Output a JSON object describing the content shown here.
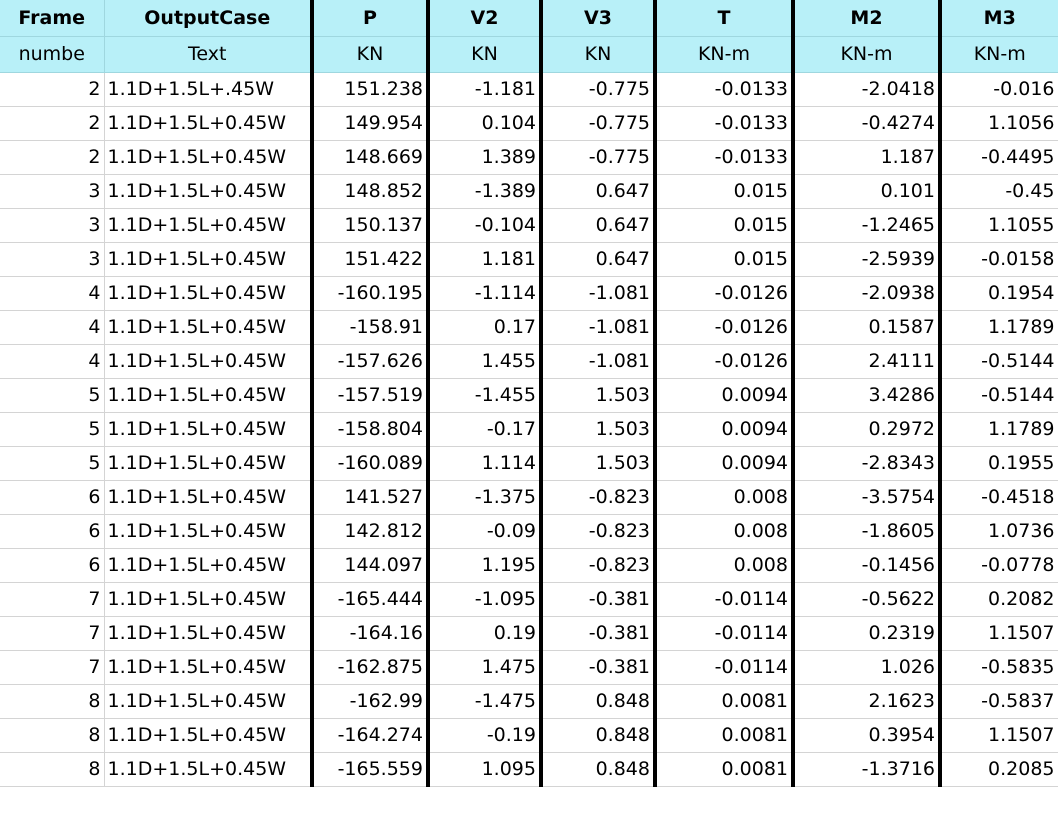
{
  "headers": [
    "Frame",
    "OutputCase",
    "P",
    "V2",
    "V3",
    "T",
    "M2",
    "M3"
  ],
  "units": [
    "numbe",
    "Text",
    "KN",
    "KN",
    "KN",
    "KN-m",
    "KN-m",
    "KN-m"
  ],
  "rows": [
    [
      "2",
      "1.1D+1.5L+.45W",
      "151.238",
      "-1.181",
      "-0.775",
      "-0.0133",
      "-2.0418",
      "-0.016"
    ],
    [
      "2",
      "1.1D+1.5L+0.45W",
      "149.954",
      "0.104",
      "-0.775",
      "-0.0133",
      "-0.4274",
      "1.1056"
    ],
    [
      "2",
      "1.1D+1.5L+0.45W",
      "148.669",
      "1.389",
      "-0.775",
      "-0.0133",
      "1.187",
      "-0.4495"
    ],
    [
      "3",
      "1.1D+1.5L+0.45W",
      "148.852",
      "-1.389",
      "0.647",
      "0.015",
      "0.101",
      "-0.45"
    ],
    [
      "3",
      "1.1D+1.5L+0.45W",
      "150.137",
      "-0.104",
      "0.647",
      "0.015",
      "-1.2465",
      "1.1055"
    ],
    [
      "3",
      "1.1D+1.5L+0.45W",
      "151.422",
      "1.181",
      "0.647",
      "0.015",
      "-2.5939",
      "-0.0158"
    ],
    [
      "4",
      "1.1D+1.5L+0.45W",
      "-160.195",
      "-1.114",
      "-1.081",
      "-0.0126",
      "-2.0938",
      "0.1954"
    ],
    [
      "4",
      "1.1D+1.5L+0.45W",
      "-158.91",
      "0.17",
      "-1.081",
      "-0.0126",
      "0.1587",
      "1.1789"
    ],
    [
      "4",
      "1.1D+1.5L+0.45W",
      "-157.626",
      "1.455",
      "-1.081",
      "-0.0126",
      "2.4111",
      "-0.5144"
    ],
    [
      "5",
      "1.1D+1.5L+0.45W",
      "-157.519",
      "-1.455",
      "1.503",
      "0.0094",
      "3.4286",
      "-0.5144"
    ],
    [
      "5",
      "1.1D+1.5L+0.45W",
      "-158.804",
      "-0.17",
      "1.503",
      "0.0094",
      "0.2972",
      "1.1789"
    ],
    [
      "5",
      "1.1D+1.5L+0.45W",
      "-160.089",
      "1.114",
      "1.503",
      "0.0094",
      "-2.8343",
      "0.1955"
    ],
    [
      "6",
      "1.1D+1.5L+0.45W",
      "141.527",
      "-1.375",
      "-0.823",
      "0.008",
      "-3.5754",
      "-0.4518"
    ],
    [
      "6",
      "1.1D+1.5L+0.45W",
      "142.812",
      "-0.09",
      "-0.823",
      "0.008",
      "-1.8605",
      "1.0736"
    ],
    [
      "6",
      "1.1D+1.5L+0.45W",
      "144.097",
      "1.195",
      "-0.823",
      "0.008",
      "-0.1456",
      "-0.0778"
    ],
    [
      "7",
      "1.1D+1.5L+0.45W",
      "-165.444",
      "-1.095",
      "-0.381",
      "-0.0114",
      "-0.5622",
      "0.2082"
    ],
    [
      "7",
      "1.1D+1.5L+0.45W",
      "-164.16",
      "0.19",
      "-0.381",
      "-0.0114",
      "0.2319",
      "1.1507"
    ],
    [
      "7",
      "1.1D+1.5L+0.45W",
      "-162.875",
      "1.475",
      "-0.381",
      "-0.0114",
      "1.026",
      "-0.5835"
    ],
    [
      "8",
      "1.1D+1.5L+0.45W",
      "-162.99",
      "-1.475",
      "0.848",
      "0.0081",
      "2.1623",
      "-0.5837"
    ],
    [
      "8",
      "1.1D+1.5L+0.45W",
      "-164.274",
      "-0.19",
      "0.848",
      "0.0081",
      "0.3954",
      "1.1507"
    ],
    [
      "8",
      "1.1D+1.5L+0.45W",
      "-165.559",
      "1.095",
      "0.848",
      "0.0081",
      "-1.3716",
      "0.2085"
    ]
  ],
  "colors": {
    "header_bg": "#b8f0f8",
    "grid_line": "#d4d4d4",
    "separator": "#000000"
  }
}
